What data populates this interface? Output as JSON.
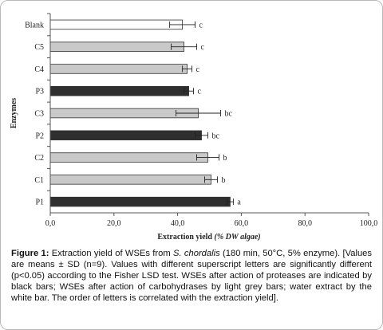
{
  "chart_data": {
    "type": "bar",
    "orientation": "horizontal",
    "categories": [
      "Blank",
      "C5",
      "C4",
      "P3",
      "C3",
      "P2",
      "C2",
      "C1",
      "P1"
    ],
    "values": [
      41.5,
      42.0,
      43.0,
      43.5,
      46.5,
      47.5,
      49.5,
      50.5,
      56.5
    ],
    "errors": [
      4.0,
      4.0,
      1.5,
      1.5,
      7.0,
      2.0,
      3.5,
      2.0,
      1.0
    ],
    "letters": [
      "c",
      "c",
      "c",
      "c",
      "bc",
      "bc",
      "b",
      "b",
      "a"
    ],
    "bar_groups": [
      "water",
      "carbohydrase",
      "carbohydrase",
      "protease",
      "carbohydrase",
      "protease",
      "carbohydrase",
      "carbohydrase",
      "protease"
    ],
    "group_colors": {
      "water": "#ffffff",
      "carbohydrase": "#c9c9c9",
      "protease": "#2f2f2f"
    },
    "x_ticks": [
      "0,0",
      "20,0",
      "40,0",
      "60,0",
      "80,0",
      "100,0"
    ],
    "xlim": [
      0,
      100
    ],
    "xlabel": "Extraction yield",
    "xlabel_unit": "(% DW algae)",
    "ylabel": "Enzymes",
    "grid": false
  },
  "caption": {
    "label": "Figure 1:",
    "text_1": " Extraction yield of WSEs from ",
    "species": "S. chordalis",
    "text_2": " (180 min, 50°C, 5% enzyme). [Values are means ± SD (n=9). Values with different superscript letters are significantly different (p<0.05) according to the Fisher LSD test. WSEs after action of proteases are indicated by black bars; WSEs after action of carbohydrases by light grey bars; water extract by the white bar. The order of letters is correlated with the extraction yield]."
  }
}
